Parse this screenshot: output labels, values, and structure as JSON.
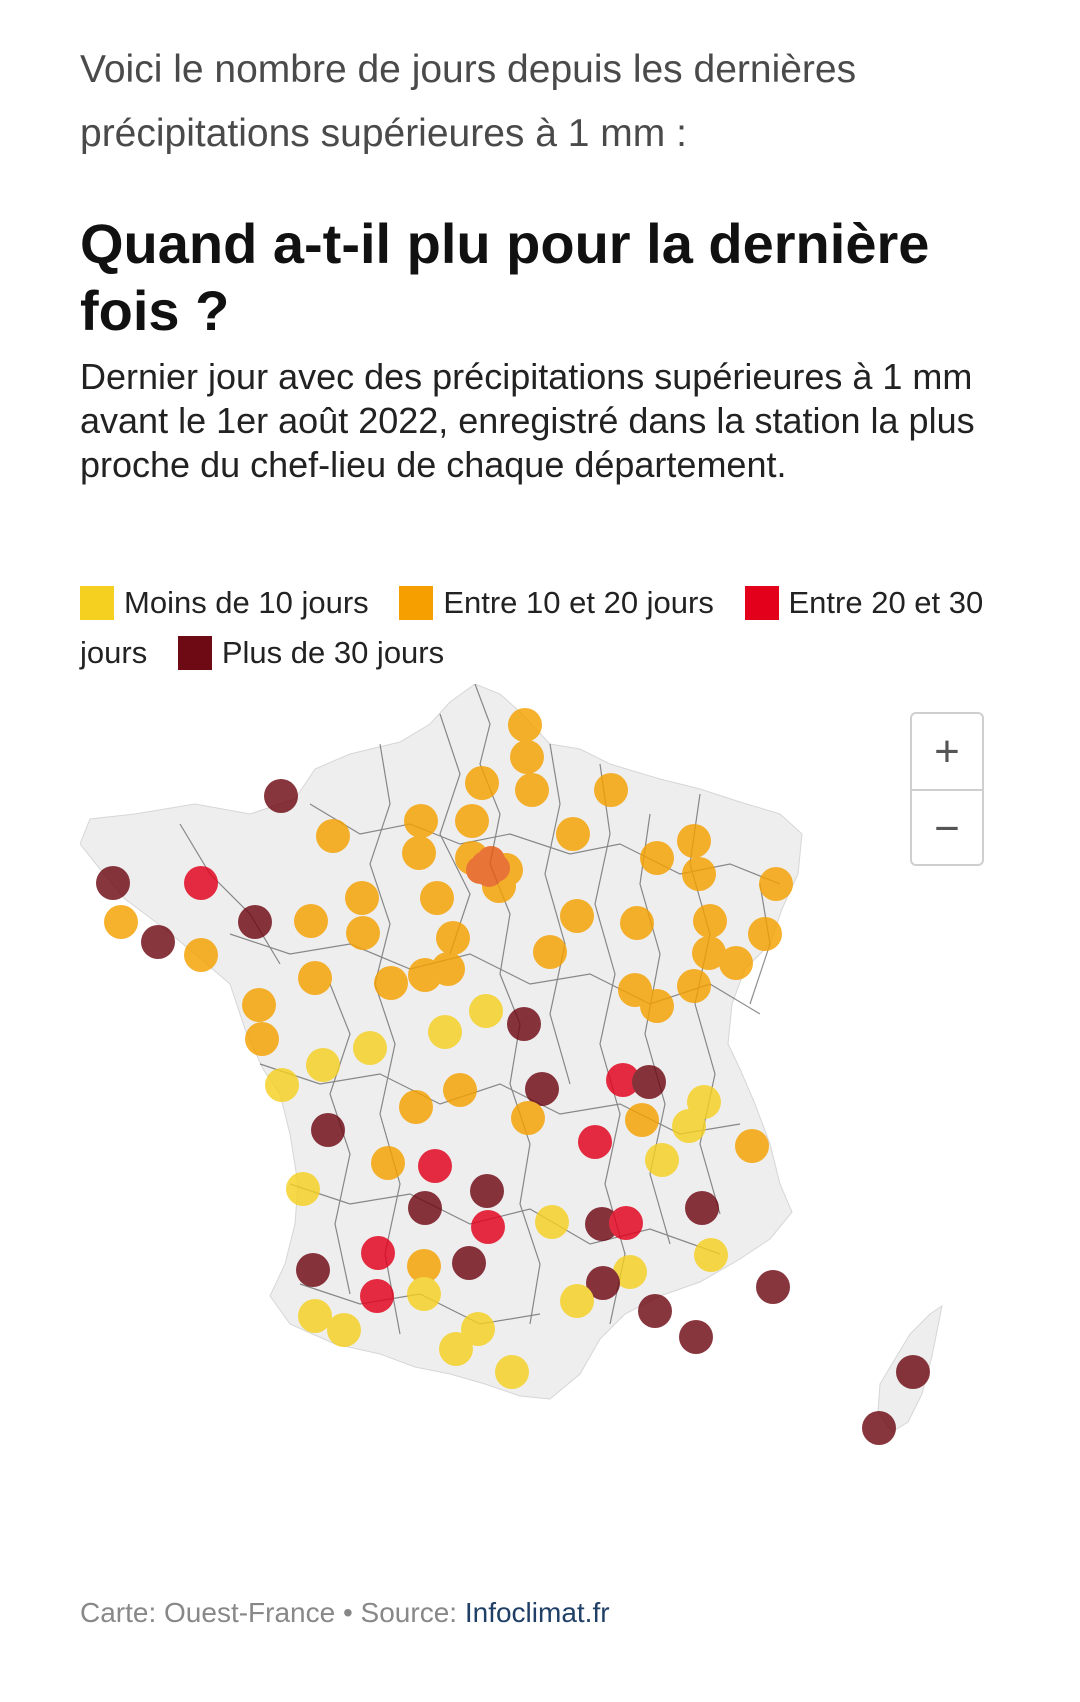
{
  "intro": "Voici le nombre de jours depuis les dernières précipitations supérieures à 1 mm :",
  "title": "Quand a-t-il plu pour la dernière fois ?",
  "subtitle": "Dernier jour avec des précipitations supérieures à 1 mm avant le 1er août 2022, enregistré dans la station la plus proche du chef-lieu de chaque département.",
  "legend": [
    {
      "label": "Moins de 10 jours",
      "color": "#f5d020"
    },
    {
      "label": "Entre 10 et 20 jours",
      "color": "#f5a000"
    },
    {
      "label": "Entre 20 et 30 jours",
      "color": "#e3001b"
    },
    {
      "label": "Plus de 30 jours",
      "color": "#6e0a14"
    }
  ],
  "map": {
    "region": "France métropolitaine",
    "land_color": "#eeeeee",
    "border_color": "#333333",
    "markers_by_category": {
      "Moins de 10 jours": 21,
      "Entre 10 et 20 jours": 47,
      "Entre 20 et 30 jours": 10,
      "Plus de 30 jours": 22
    }
  },
  "zoom": {
    "in_label": "+",
    "out_label": "−"
  },
  "footer": {
    "credit": "Carte: Ouest-France • Source: ",
    "source_link": "Infoclimat.fr"
  }
}
